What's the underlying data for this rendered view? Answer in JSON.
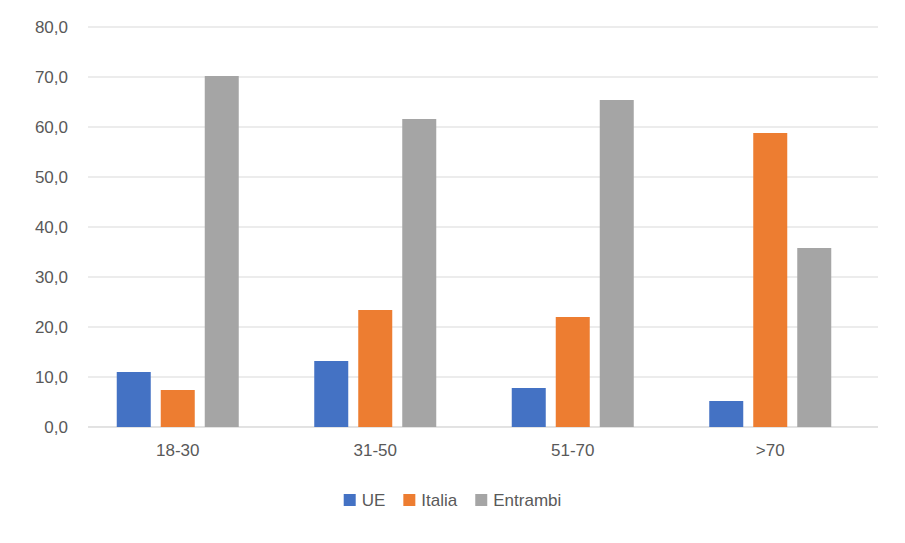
{
  "chart_data": {
    "type": "bar",
    "categories": [
      "18-30",
      "31-50",
      "51-70",
      ">70"
    ],
    "series": [
      {
        "name": "UE",
        "color": "#4472c4",
        "values": [
          11.0,
          13.2,
          7.8,
          5.2
        ]
      },
      {
        "name": "Italia",
        "color": "#ed7d31",
        "values": [
          7.4,
          23.4,
          22.0,
          58.8
        ]
      },
      {
        "name": "Entrambi",
        "color": "#a5a5a5",
        "values": [
          70.2,
          61.6,
          65.4,
          35.8
        ]
      }
    ],
    "ylim": [
      0,
      80
    ],
    "yticks": [
      {
        "value": 0,
        "label": "0,0"
      },
      {
        "value": 10,
        "label": "10,0"
      },
      {
        "value": 20,
        "label": "20,0"
      },
      {
        "value": 30,
        "label": "30,0"
      },
      {
        "value": 40,
        "label": "40,0"
      },
      {
        "value": 50,
        "label": "50,0"
      },
      {
        "value": 60,
        "label": "60,0"
      },
      {
        "value": 70,
        "label": "70,0"
      },
      {
        "value": 80,
        "label": "80,0"
      }
    ],
    "grid": true,
    "legend": "bottom"
  }
}
